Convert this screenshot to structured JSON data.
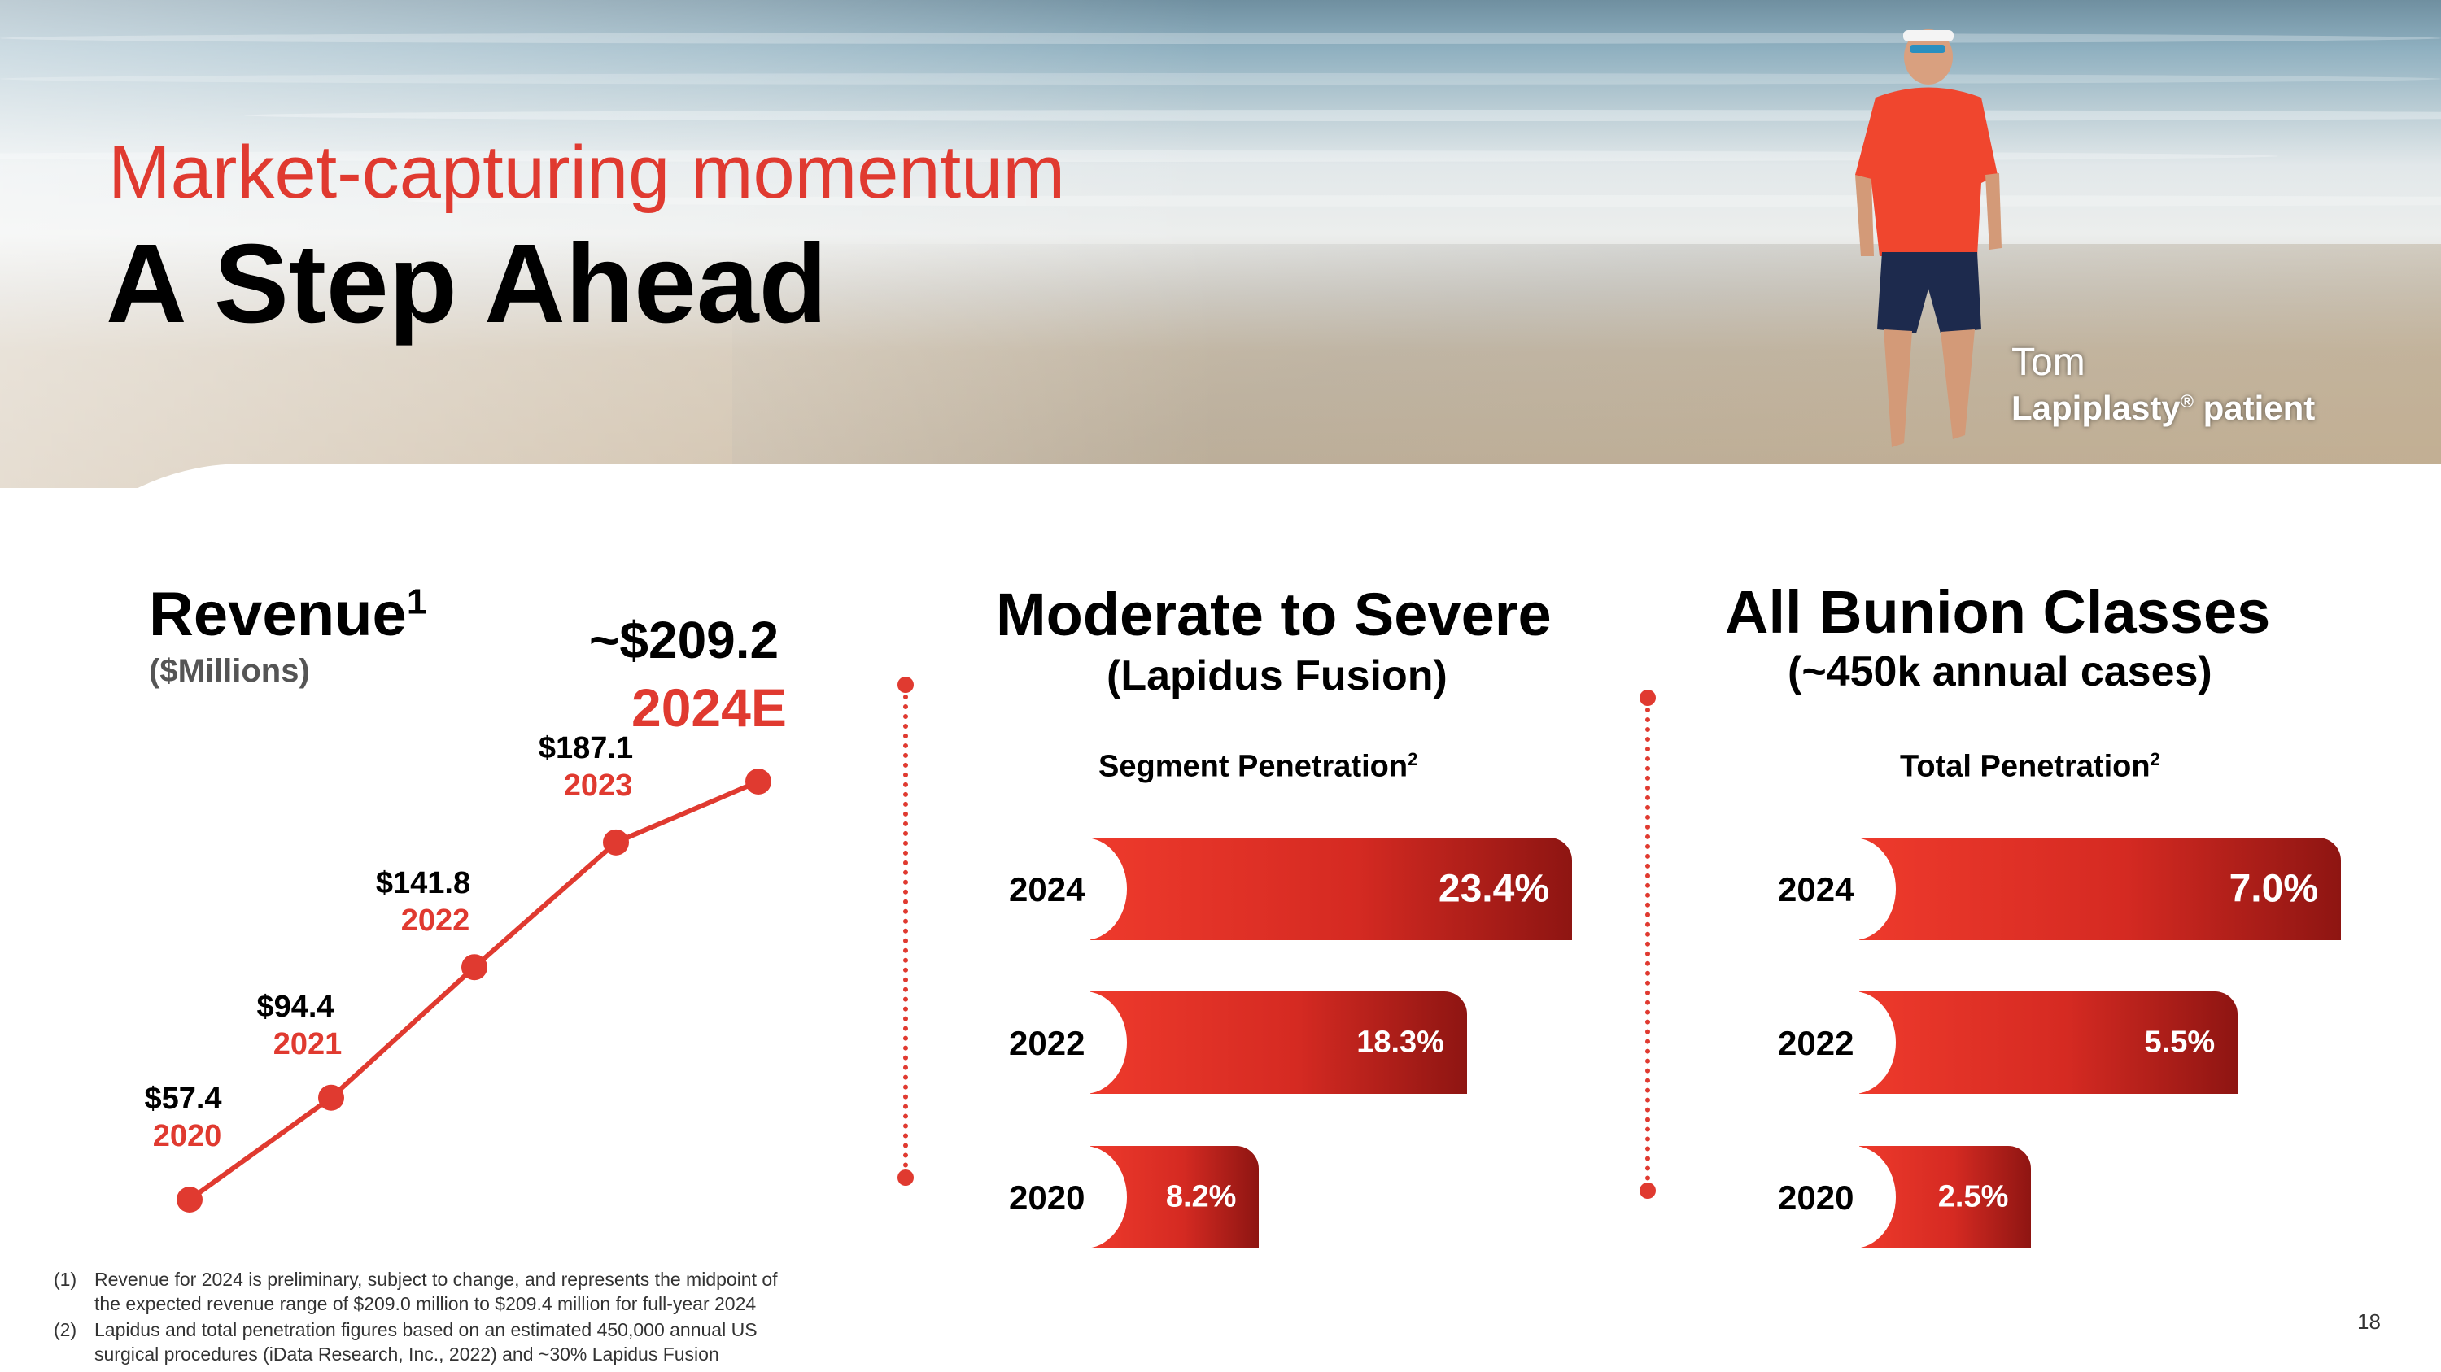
{
  "header": {
    "subtitle": "Market-capturing momentum",
    "title": "A Step Ahead"
  },
  "hero": {
    "caption_name": "Tom",
    "caption_role": "Lapiplasty",
    "caption_role_reg": "®",
    "caption_role_suffix": " patient"
  },
  "revenue": {
    "title": "Revenue",
    "title_note": "1",
    "subtitle": "($Millions)",
    "estimate_value": "~$209.2",
    "estimate_year": "2024E"
  },
  "moderate": {
    "title": "Moderate to Severe",
    "subtitle": "(Lapidus Fusion)",
    "axis_label": "Segment Penetration",
    "axis_note": "2"
  },
  "all_bunion": {
    "title": "All Bunion Classes",
    "subtitle": "(~450k annual cases)",
    "axis_label": "Total Penetration",
    "axis_note": "2"
  },
  "chart_data": [
    {
      "type": "line",
      "title": "Revenue",
      "ylabel": "($Millions)",
      "x": [
        "2020",
        "2021",
        "2022",
        "2023",
        "2024E"
      ],
      "y": [
        57.4,
        94.4,
        141.8,
        187.1,
        209.2
      ],
      "point_labels": [
        "$57.4",
        "$94.4",
        "$141.8",
        "$187.1",
        "~$209.2"
      ],
      "color": "#e03a30"
    },
    {
      "type": "bar",
      "title": "Moderate to Severe",
      "xlabel": "Segment Penetration",
      "categories": [
        "2024",
        "2022",
        "2020"
      ],
      "values": [
        23.4,
        18.3,
        8.2
      ],
      "value_labels": [
        "23.4%",
        "18.3%",
        "8.2%"
      ],
      "color": "#e03a30"
    },
    {
      "type": "bar",
      "title": "All Bunion Classes",
      "xlabel": "Total Penetration",
      "categories": [
        "2024",
        "2022",
        "2020"
      ],
      "values": [
        7.0,
        5.5,
        2.5
      ],
      "value_labels": [
        "7.0%",
        "5.5%",
        "2.5%"
      ],
      "color": "#e03a30"
    }
  ],
  "footnotes": [
    {
      "num": "(1)",
      "line1": "Revenue for 2024 is preliminary, subject to change, and represents the midpoint of",
      "line2": "the expected revenue range of $209.0 million to $209.4 million for full-year 2024"
    },
    {
      "num": "(2)",
      "line1": "Lapidus and total penetration figures based on an estimated 450,000 annual US",
      "line2": "surgical procedures (iData Research, Inc., 2022) and ~30% Lapidus Fusion"
    }
  ],
  "page_number": "18"
}
